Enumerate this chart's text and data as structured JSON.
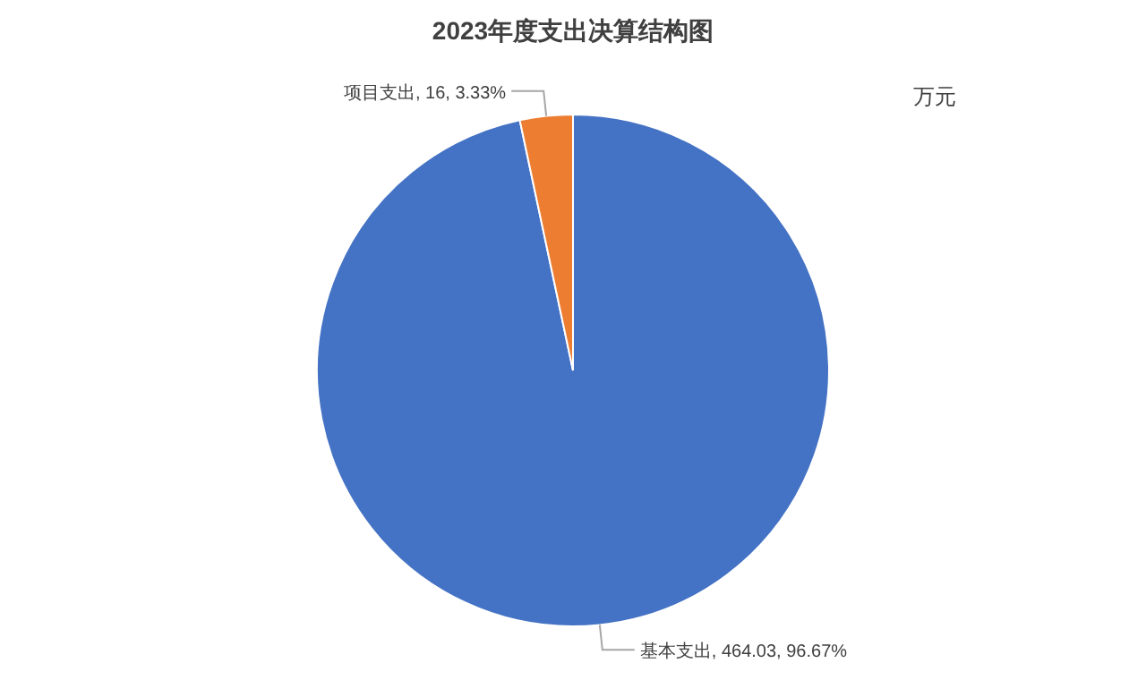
{
  "chart_data": {
    "type": "pie",
    "title": "2023年度支出决算结构图",
    "categories": [
      "基本支出",
      "项目支出"
    ],
    "values": [
      464.03,
      16
    ],
    "colors": [
      "#4472c4",
      "#ed7d31"
    ],
    "value_labels": [
      "464.03, 96.67%",
      "16, 3.33%"
    ],
    "annotations": [
      "万元"
    ]
  }
}
